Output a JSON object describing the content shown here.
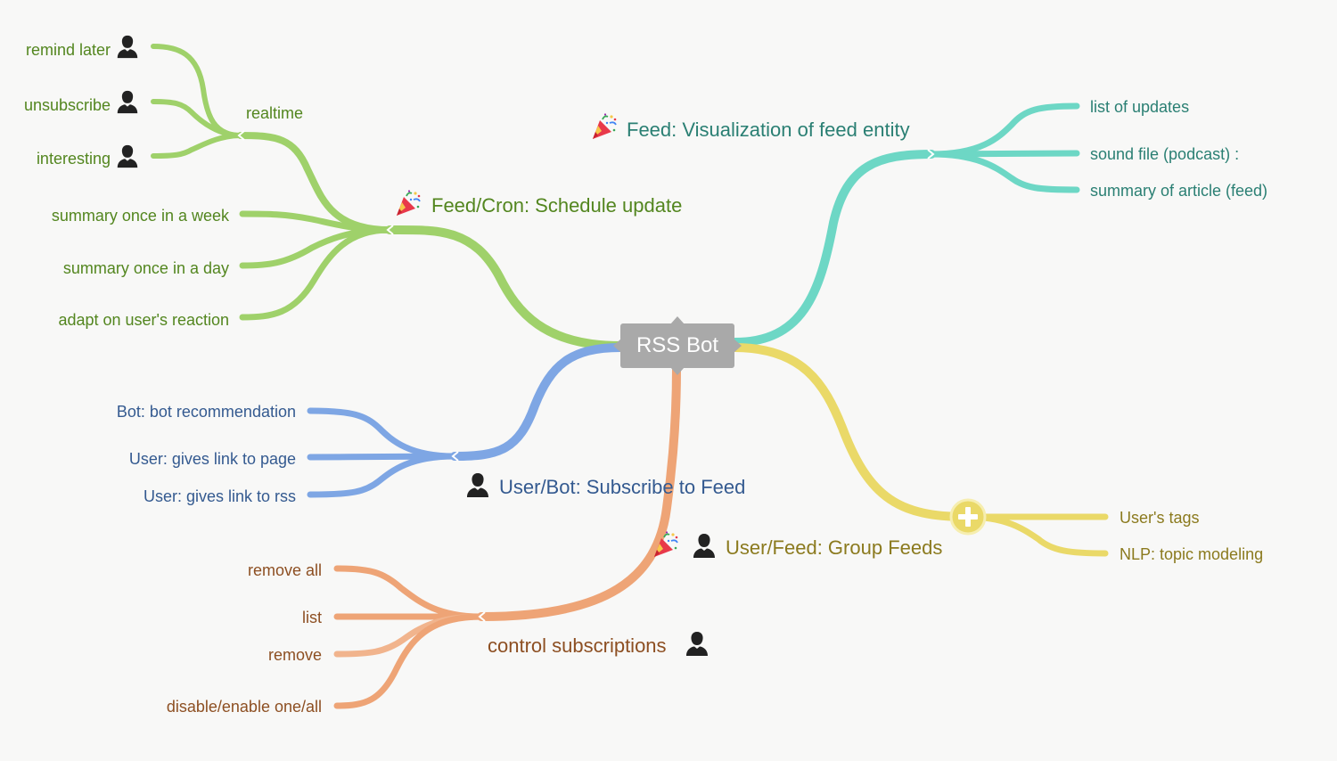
{
  "root": {
    "label": "RSS Bot"
  },
  "branches": {
    "schedule": {
      "label": "Feed/Cron: Schedule update",
      "color": "#9fd16a",
      "realtime": {
        "label": "realtime",
        "children": [
          "remind later",
          "unsubscribe",
          "interesting"
        ]
      },
      "children": [
        "summary once in a week",
        "summary once in a day",
        "adapt on user's reaction"
      ]
    },
    "visualization": {
      "label": "Feed: Visualization of feed entity",
      "color": "#6dd7c5",
      "children": [
        "list of updates",
        "sound file (podcast) :",
        "summary of article (feed)"
      ]
    },
    "subscribe": {
      "label": "User/Bot: Subscribe to Feed",
      "color": "#7ea6e4",
      "children": [
        "Bot: bot recommendation",
        "User: gives link to page",
        "User: gives link to rss"
      ]
    },
    "control": {
      "label": "control subscriptions",
      "color": "#eea476",
      "children": [
        "remove all",
        "list",
        "remove",
        "disable/enable one/all"
      ]
    },
    "group": {
      "label": "User/Feed: Group Feeds",
      "color": "#ead968",
      "children": [
        "User's tags",
        "NLP: topic modeling"
      ]
    }
  },
  "icons": {
    "user": "user-silhouette-icon",
    "party": "party-popper-icon",
    "expand": "plus-circle-icon"
  }
}
